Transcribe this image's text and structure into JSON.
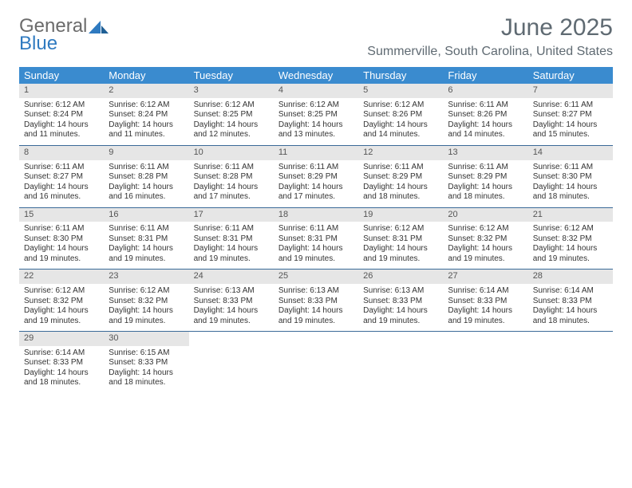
{
  "logo": {
    "line1": "General",
    "line2": "Blue"
  },
  "title": "June 2025",
  "location": "Summerville, South Carolina, United States",
  "colors": {
    "header_bg": "#3a8bcf",
    "header_text": "#ffffff",
    "daynum_bg": "#e6e6e6",
    "row_border": "#3a6a98",
    "title_color": "#5f6a72",
    "logo_blue": "#2f7ac0",
    "logo_gray": "#6b6b6b"
  },
  "weekdays": [
    "Sunday",
    "Monday",
    "Tuesday",
    "Wednesday",
    "Thursday",
    "Friday",
    "Saturday"
  ],
  "weeks": [
    [
      {
        "n": "1",
        "sr": "6:12 AM",
        "ss": "8:24 PM",
        "dl": "14 hours and 11 minutes."
      },
      {
        "n": "2",
        "sr": "6:12 AM",
        "ss": "8:24 PM",
        "dl": "14 hours and 11 minutes."
      },
      {
        "n": "3",
        "sr": "6:12 AM",
        "ss": "8:25 PM",
        "dl": "14 hours and 12 minutes."
      },
      {
        "n": "4",
        "sr": "6:12 AM",
        "ss": "8:25 PM",
        "dl": "14 hours and 13 minutes."
      },
      {
        "n": "5",
        "sr": "6:12 AM",
        "ss": "8:26 PM",
        "dl": "14 hours and 14 minutes."
      },
      {
        "n": "6",
        "sr": "6:11 AM",
        "ss": "8:26 PM",
        "dl": "14 hours and 14 minutes."
      },
      {
        "n": "7",
        "sr": "6:11 AM",
        "ss": "8:27 PM",
        "dl": "14 hours and 15 minutes."
      }
    ],
    [
      {
        "n": "8",
        "sr": "6:11 AM",
        "ss": "8:27 PM",
        "dl": "14 hours and 16 minutes."
      },
      {
        "n": "9",
        "sr": "6:11 AM",
        "ss": "8:28 PM",
        "dl": "14 hours and 16 minutes."
      },
      {
        "n": "10",
        "sr": "6:11 AM",
        "ss": "8:28 PM",
        "dl": "14 hours and 17 minutes."
      },
      {
        "n": "11",
        "sr": "6:11 AM",
        "ss": "8:29 PM",
        "dl": "14 hours and 17 minutes."
      },
      {
        "n": "12",
        "sr": "6:11 AM",
        "ss": "8:29 PM",
        "dl": "14 hours and 18 minutes."
      },
      {
        "n": "13",
        "sr": "6:11 AM",
        "ss": "8:29 PM",
        "dl": "14 hours and 18 minutes."
      },
      {
        "n": "14",
        "sr": "6:11 AM",
        "ss": "8:30 PM",
        "dl": "14 hours and 18 minutes."
      }
    ],
    [
      {
        "n": "15",
        "sr": "6:11 AM",
        "ss": "8:30 PM",
        "dl": "14 hours and 19 minutes."
      },
      {
        "n": "16",
        "sr": "6:11 AM",
        "ss": "8:31 PM",
        "dl": "14 hours and 19 minutes."
      },
      {
        "n": "17",
        "sr": "6:11 AM",
        "ss": "8:31 PM",
        "dl": "14 hours and 19 minutes."
      },
      {
        "n": "18",
        "sr": "6:11 AM",
        "ss": "8:31 PM",
        "dl": "14 hours and 19 minutes."
      },
      {
        "n": "19",
        "sr": "6:12 AM",
        "ss": "8:31 PM",
        "dl": "14 hours and 19 minutes."
      },
      {
        "n": "20",
        "sr": "6:12 AM",
        "ss": "8:32 PM",
        "dl": "14 hours and 19 minutes."
      },
      {
        "n": "21",
        "sr": "6:12 AM",
        "ss": "8:32 PM",
        "dl": "14 hours and 19 minutes."
      }
    ],
    [
      {
        "n": "22",
        "sr": "6:12 AM",
        "ss": "8:32 PM",
        "dl": "14 hours and 19 minutes."
      },
      {
        "n": "23",
        "sr": "6:12 AM",
        "ss": "8:32 PM",
        "dl": "14 hours and 19 minutes."
      },
      {
        "n": "24",
        "sr": "6:13 AM",
        "ss": "8:33 PM",
        "dl": "14 hours and 19 minutes."
      },
      {
        "n": "25",
        "sr": "6:13 AM",
        "ss": "8:33 PM",
        "dl": "14 hours and 19 minutes."
      },
      {
        "n": "26",
        "sr": "6:13 AM",
        "ss": "8:33 PM",
        "dl": "14 hours and 19 minutes."
      },
      {
        "n": "27",
        "sr": "6:14 AM",
        "ss": "8:33 PM",
        "dl": "14 hours and 19 minutes."
      },
      {
        "n": "28",
        "sr": "6:14 AM",
        "ss": "8:33 PM",
        "dl": "14 hours and 18 minutes."
      }
    ],
    [
      {
        "n": "29",
        "sr": "6:14 AM",
        "ss": "8:33 PM",
        "dl": "14 hours and 18 minutes."
      },
      {
        "n": "30",
        "sr": "6:15 AM",
        "ss": "8:33 PM",
        "dl": "14 hours and 18 minutes."
      },
      null,
      null,
      null,
      null,
      null
    ]
  ],
  "labels": {
    "sunrise": "Sunrise:",
    "sunset": "Sunset:",
    "daylight": "Daylight:"
  }
}
